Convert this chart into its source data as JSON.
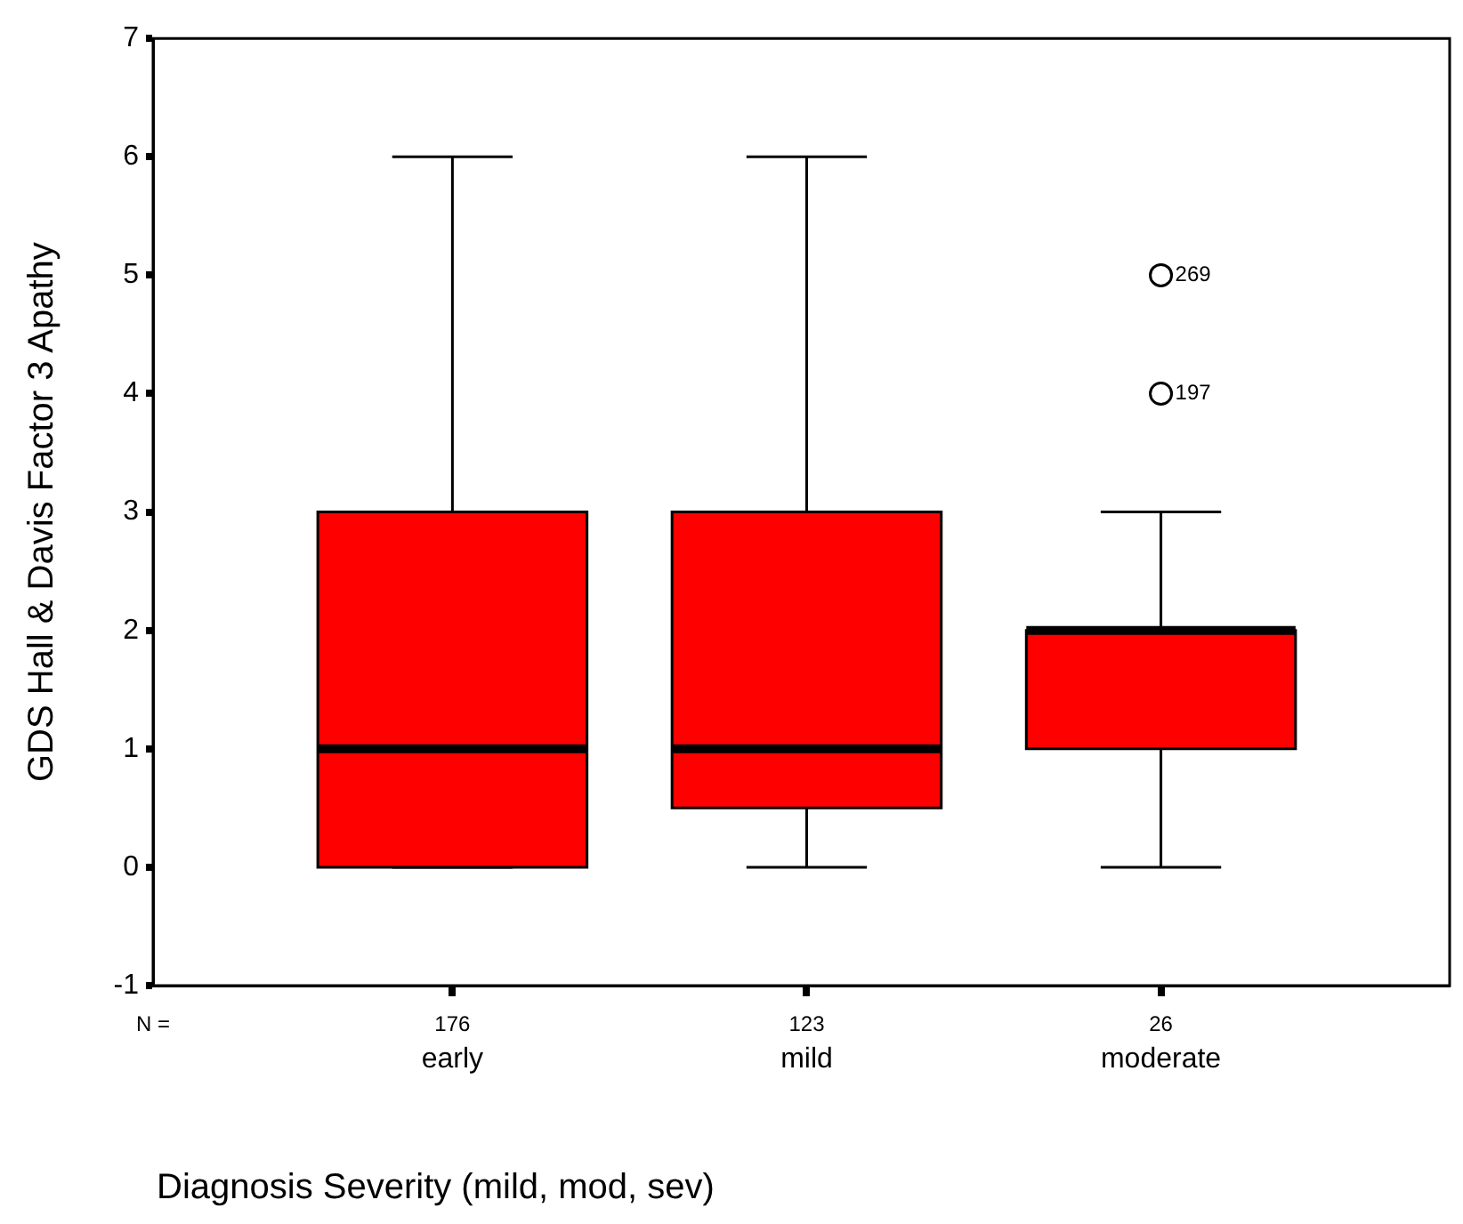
{
  "chart_data": {
    "type": "box",
    "ylabel": "GDS Hall & Davis Factor 3 Apathy",
    "categories": [
      "early",
      "mild",
      "moderate"
    ],
    "boxes": [
      {
        "low": 0,
        "q1": 0,
        "median": 1,
        "q3": 3,
        "high": 6
      },
      {
        "low": 0,
        "q1": 0.5,
        "median": 1,
        "q3": 3,
        "high": 6
      },
      {
        "low": 0,
        "q1": 1,
        "median": 2,
        "q3": 2,
        "high": 3,
        "outliers": [
          4,
          5
        ]
      }
    ],
    "color": "#ff0000",
    "ylim": [
      -1,
      7
    ],
    "yticks": [
      -1,
      0,
      1,
      2,
      3,
      4,
      5,
      6,
      7
    ],
    "grid": false,
    "annotations": [
      "N =",
      "176",
      "123",
      "26",
      "197",
      "269",
      "Diagnosis Severity (mild, mod, sev)"
    ]
  }
}
